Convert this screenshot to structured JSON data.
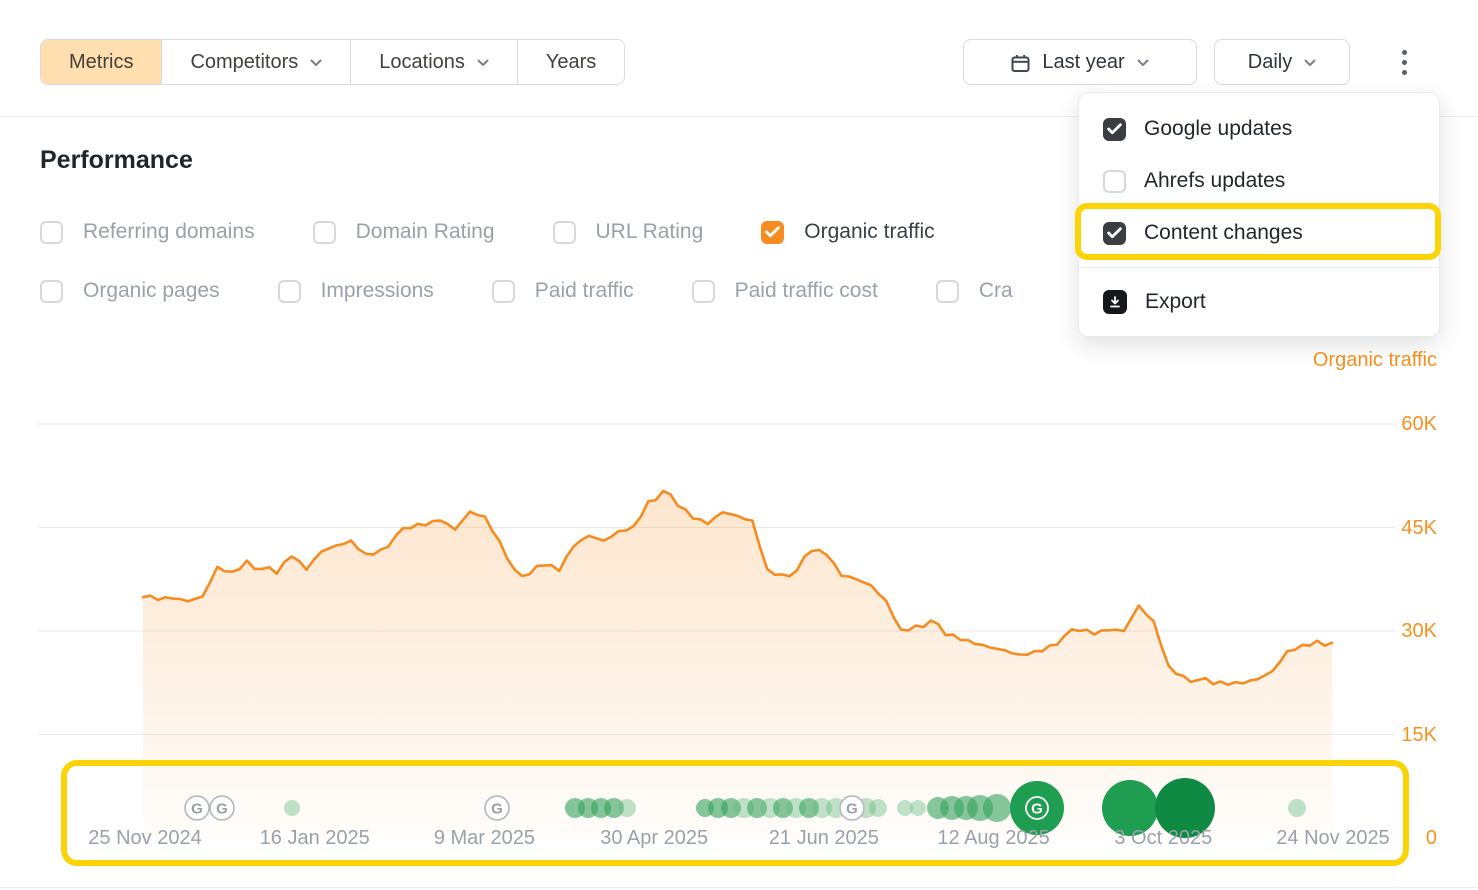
{
  "colors": {
    "accent_orange": "#f68b1f",
    "highlight_yellow": "#fcd405",
    "green_light": "rgba(94,186,125,0.40)",
    "green_mid": "rgba(52,161,92,0.60)",
    "green_dark": "#1f9d50",
    "green_darker": "#0f8a43",
    "active_tab_bg": "#ffdfb0"
  },
  "toolbar": {
    "tabs": [
      {
        "label": "Metrics",
        "active": true,
        "chevron": false
      },
      {
        "label": "Competitors",
        "active": false,
        "chevron": true
      },
      {
        "label": "Locations",
        "active": false,
        "chevron": true
      },
      {
        "label": "Years",
        "active": false,
        "chevron": false
      }
    ],
    "date_range_label": "Last year",
    "granularity_label": "Daily"
  },
  "menu": {
    "items": [
      {
        "label": "Google updates",
        "checked": true,
        "highlighted": false
      },
      {
        "label": "Ahrefs updates",
        "checked": false,
        "highlighted": false
      },
      {
        "label": "Content changes",
        "checked": true,
        "highlighted": true
      }
    ],
    "export_label": "Export"
  },
  "performance": {
    "title": "Performance",
    "metric_rows": [
      [
        {
          "label": "Referring domains",
          "checked": false
        },
        {
          "label": "Domain Rating",
          "checked": false
        },
        {
          "label": "URL Rating",
          "checked": false
        },
        {
          "label": "Organic traffic",
          "checked": true
        }
      ],
      [
        {
          "label": "Organic pages",
          "checked": false
        },
        {
          "label": "Impressions",
          "checked": false
        },
        {
          "label": "Paid traffic",
          "checked": false
        },
        {
          "label": "Paid traffic cost",
          "checked": false
        },
        {
          "label": "Cra",
          "checked": false
        }
      ]
    ]
  },
  "chart_data": {
    "type": "area",
    "title": "Organic traffic",
    "unit": "K",
    "ylim": [
      0,
      60
    ],
    "grid": true,
    "legend_position": "top-right",
    "yticks": [
      {
        "label": "60K",
        "value": 60
      },
      {
        "label": "45K",
        "value": 45
      },
      {
        "label": "30K",
        "value": 30
      },
      {
        "label": "15K",
        "value": 15
      },
      {
        "label": "0",
        "value": 0
      }
    ],
    "xticks": [
      "25 Nov 2024",
      "16 Jan 2025",
      "9 Mar 2025",
      "30 Apr 2025",
      "21 Jun 2025",
      "12 Aug 2025",
      "3 Oct 2025",
      "24 Nov 2025"
    ],
    "values_k": [
      34.9,
      34.5,
      34.7,
      34.3,
      35.0,
      39.3,
      38.6,
      40.2,
      39.0,
      38.3,
      40.8,
      38.9,
      41.5,
      42.4,
      43.1,
      41.2,
      41.8,
      43.8,
      44.9,
      45.3,
      46.0,
      44.7,
      47.3,
      46.6,
      43.0,
      38.9,
      38.2,
      39.5,
      38.7,
      42.3,
      43.8,
      43.1,
      44.5,
      45.2,
      48.8,
      50.3,
      48.1,
      46.3,
      45.5,
      47.2,
      46.7,
      46.0,
      39.0,
      38.2,
      38.8,
      41.6,
      41.0,
      38.0,
      37.5,
      36.6,
      34.4,
      30.2,
      30.8,
      31.5,
      29.4,
      28.7,
      28.1,
      27.6,
      27.2,
      26.6,
      27.1,
      27.9,
      29.3,
      30.0,
      29.5,
      30.1,
      30.0,
      33.7,
      31.4,
      25.0,
      23.5,
      22.9,
      22.3,
      22.2,
      22.4,
      23.0,
      24.2,
      27.1,
      28.0,
      28.6,
      28.3
    ],
    "events": [
      {
        "type": "google",
        "x": 197
      },
      {
        "type": "google",
        "x": 222
      },
      {
        "type": "content",
        "x": 292,
        "r": 8,
        "shade": "light"
      },
      {
        "type": "google",
        "x": 497
      },
      {
        "type": "content",
        "x": 575,
        "r": 10,
        "shade": "mid"
      },
      {
        "type": "content",
        "x": 588,
        "r": 10,
        "shade": "mid"
      },
      {
        "type": "content",
        "x": 601,
        "r": 10,
        "shade": "mid"
      },
      {
        "type": "content",
        "x": 614,
        "r": 10,
        "shade": "mid"
      },
      {
        "type": "content",
        "x": 627,
        "r": 9,
        "shade": "light"
      },
      {
        "type": "content",
        "x": 705,
        "r": 9,
        "shade": "mid"
      },
      {
        "type": "content",
        "x": 718,
        "r": 10,
        "shade": "mid"
      },
      {
        "type": "content",
        "x": 731,
        "r": 10,
        "shade": "mid"
      },
      {
        "type": "content",
        "x": 744,
        "r": 10,
        "shade": "light"
      },
      {
        "type": "content",
        "x": 757,
        "r": 10,
        "shade": "mid"
      },
      {
        "type": "content",
        "x": 770,
        "r": 10,
        "shade": "light"
      },
      {
        "type": "content",
        "x": 783,
        "r": 10,
        "shade": "mid"
      },
      {
        "type": "content",
        "x": 796,
        "r": 10,
        "shade": "light"
      },
      {
        "type": "content",
        "x": 809,
        "r": 10,
        "shade": "mid"
      },
      {
        "type": "content",
        "x": 822,
        "r": 10,
        "shade": "light"
      },
      {
        "type": "content",
        "x": 836,
        "r": 10,
        "shade": "light"
      },
      {
        "type": "google",
        "x": 852
      },
      {
        "type": "content",
        "x": 866,
        "r": 10,
        "shade": "light"
      },
      {
        "type": "content",
        "x": 878,
        "r": 9,
        "shade": "light"
      },
      {
        "type": "content",
        "x": 905,
        "r": 8,
        "shade": "light"
      },
      {
        "type": "content",
        "x": 918,
        "r": 8,
        "shade": "light"
      },
      {
        "type": "content",
        "x": 938,
        "r": 11,
        "shade": "mid"
      },
      {
        "type": "content",
        "x": 952,
        "r": 12,
        "shade": "mid"
      },
      {
        "type": "content",
        "x": 966,
        "r": 12,
        "shade": "mid"
      },
      {
        "type": "content",
        "x": 980,
        "r": 13,
        "shade": "mid"
      },
      {
        "type": "content",
        "x": 997,
        "r": 14,
        "shade": "mid"
      },
      {
        "type": "content",
        "x": 1037,
        "r": 27,
        "shade": "dark",
        "g_badge": true
      },
      {
        "type": "content",
        "x": 1130,
        "r": 28,
        "shade": "dark"
      },
      {
        "type": "content",
        "x": 1185,
        "r": 30,
        "shade": "darker"
      },
      {
        "type": "content",
        "x": 1297,
        "r": 9,
        "shade": "light"
      }
    ]
  }
}
